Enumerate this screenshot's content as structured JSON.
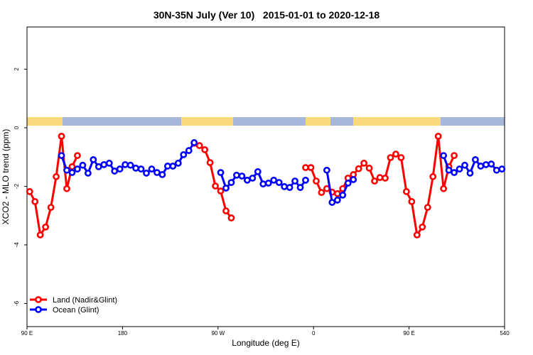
{
  "chart_data": {
    "type": "line",
    "title": "30N-35N July (Ver 10)   2015-01-01 to 2020-12-18",
    "x_label": "Longitude (deg E)",
    "y_label": "XCO2 - MLO trend (ppm)",
    "xlim": [
      90,
      540
    ],
    "xticks": [
      {
        "value": 90,
        "label": "90 E"
      },
      180,
      {
        "value": 270,
        "label": "90 W"
      },
      {
        "value": 360,
        "label": "0"
      },
      {
        "value": 450,
        "label": "90 E"
      },
      540
    ],
    "ylim": [
      -6.79,
      3.44
    ],
    "yticks": [
      -6,
      -4,
      -2,
      0,
      2
    ],
    "legend": "bottom-left",
    "series": [
      {
        "name": "Land (Nadir&Glint)",
        "color": "#ff0000",
        "x": [
          92.5,
          97.5,
          102.5,
          107.5,
          112.5,
          117.5,
          122.5,
          127.5,
          132.5,
          137.5,
          142.5,
          247.5,
          252.5,
          257.5,
          262.5,
          267.5,
          272.5,
          277.5,
          282.5,
          287.5,
          352.5,
          357.5,
          362.5,
          367.5,
          372.5,
          377.5,
          382.5,
          387.5,
          392.5,
          397.5,
          402.5,
          407.5,
          412.5,
          417.5,
          422.5,
          427.5,
          432.5,
          437.5,
          442.5,
          447.5,
          452.5,
          457.5,
          462.5,
          467.5,
          472.5,
          477.5,
          482.5,
          487.5,
          492.5
        ],
        "values": [
          -2.18,
          -2.52,
          -3.66,
          -3.39,
          -2.72,
          -1.67,
          -0.29,
          -2.08,
          -1.33,
          -0.95,
          null,
          -0.53,
          -0.61,
          -0.75,
          -1.19,
          -1.99,
          -2.16,
          -2.84,
          -3.08,
          null,
          -1.36,
          -1.36,
          -1.82,
          -2.21,
          -2.08,
          -2.2,
          -2.25,
          -2.08,
          -1.72,
          -1.6,
          -1.4,
          -1.21,
          -1.38,
          -1.82,
          -1.7,
          -1.72,
          -1.02,
          -0.9,
          -1.02,
          -2.18,
          -2.52,
          -3.66,
          -3.39,
          -2.72,
          -1.67,
          -0.29,
          -2.08,
          -1.33,
          -0.95
        ]
      },
      {
        "name": "Ocean (Glint)",
        "color": "#0000ff",
        "x": [
          122.5,
          127.5,
          132.5,
          137.5,
          142.5,
          147.5,
          152.5,
          157.5,
          162.5,
          167.5,
          172.5,
          177.5,
          182.5,
          187.5,
          192.5,
          197.5,
          202.5,
          207.5,
          212.5,
          217.5,
          222.5,
          227.5,
          232.5,
          237.5,
          242.5,
          247.5,
          252.5,
          272.5,
          277.5,
          282.5,
          287.5,
          292.5,
          297.5,
          302.5,
          307.5,
          312.5,
          317.5,
          322.5,
          327.5,
          332.5,
          337.5,
          342.5,
          347.5,
          352.5,
          357.5,
          372.5,
          377.5,
          382.5,
          387.5,
          392.5,
          397.5,
          402.5,
          482.5,
          487.5,
          492.5,
          497.5,
          502.5,
          507.5,
          512.5,
          517.5,
          522.5,
          527.5,
          532.5,
          537.5
        ],
        "values": [
          -0.95,
          -1.45,
          -1.53,
          -1.41,
          -1.28,
          -1.55,
          -1.09,
          -1.33,
          -1.26,
          -1.21,
          -1.48,
          -1.41,
          -1.26,
          -1.28,
          -1.38,
          -1.41,
          -1.55,
          -1.41,
          -1.53,
          -1.6,
          -1.31,
          -1.31,
          -1.21,
          -0.92,
          -0.78,
          -0.51,
          null,
          -1.53,
          -2.06,
          -1.87,
          -1.62,
          -1.65,
          -1.79,
          -1.72,
          -1.5,
          -1.92,
          -1.89,
          -1.79,
          -1.87,
          -2.01,
          -2.04,
          -1.82,
          -2.04,
          -1.79,
          null,
          -1.45,
          -2.55,
          -2.47,
          -2.3,
          -1.89,
          -1.77,
          null,
          -0.95,
          -1.45,
          -1.53,
          -1.41,
          -1.28,
          -1.55,
          -1.09,
          -1.31,
          -1.26,
          -1.24,
          -1.45,
          -1.41
        ]
      }
    ]
  }
}
